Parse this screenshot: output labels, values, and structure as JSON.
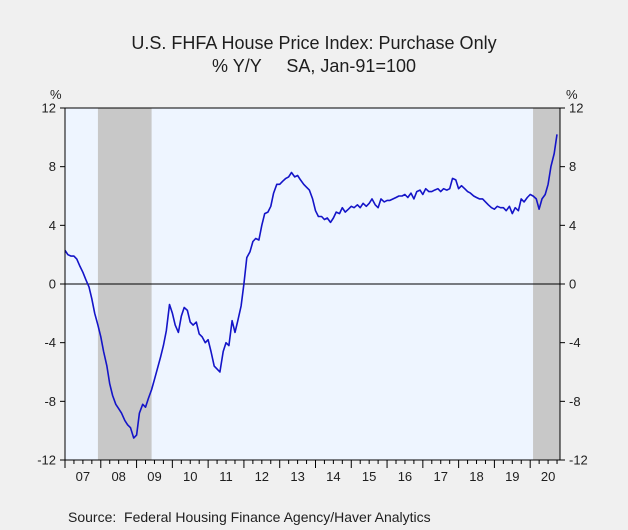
{
  "chart_data": {
    "type": "line",
    "title": "U.S. FHFA House Price Index: Purchase Only",
    "subtitle": "% Y/Y     SA, Jan-91=100",
    "ylabel_left": "%",
    "ylabel_right": "%",
    "source": "Source:  Federal Housing Finance Agency/Haver Analytics",
    "ylim": [
      -12,
      12
    ],
    "yticks": [
      "12",
      "8",
      "4",
      "0",
      "-4",
      "-8",
      "-12"
    ],
    "yticks_right": [
      "12",
      "8",
      "4",
      "0",
      "-4",
      "-8",
      "-12"
    ],
    "xlim": [
      2007.0,
      2020.833
    ],
    "xticks": [
      "07",
      "08",
      "09",
      "10",
      "11",
      "12",
      "13",
      "14",
      "15",
      "16",
      "17",
      "18",
      "19",
      "20"
    ],
    "grid": false,
    "legend": "none",
    "colors": {
      "line": "#1414c8",
      "plot_bg": "#eef5ff",
      "recession": "#c8c8c8",
      "page_bg": "#f0f0f0",
      "axis": "#000000"
    },
    "recessions": [
      {
        "start": 2007.92,
        "end": 2009.42
      },
      {
        "start": 2020.08,
        "end": 2020.833
      }
    ],
    "series": [
      {
        "x": [
          2007.0,
          2007.08,
          2007.17,
          2007.25,
          2007.33,
          2007.42,
          2007.5,
          2007.58,
          2007.67,
          2007.75,
          2007.83,
          2007.92,
          2008.0,
          2008.08,
          2008.17,
          2008.25,
          2008.33,
          2008.42,
          2008.5,
          2008.58,
          2008.67,
          2008.75,
          2008.83,
          2008.92,
          2009.0,
          2009.08,
          2009.17,
          2009.25,
          2009.33,
          2009.42,
          2009.5,
          2009.58,
          2009.67,
          2009.75,
          2009.83,
          2009.92,
          2010.0,
          2010.08,
          2010.17,
          2010.25,
          2010.33,
          2010.42,
          2010.5,
          2010.58,
          2010.67,
          2010.75,
          2010.83,
          2010.92,
          2011.0,
          2011.08,
          2011.17,
          2011.25,
          2011.33,
          2011.42,
          2011.5,
          2011.58,
          2011.67,
          2011.75,
          2011.83,
          2011.92,
          2012.0,
          2012.08,
          2012.17,
          2012.25,
          2012.33,
          2012.42,
          2012.5,
          2012.58,
          2012.67,
          2012.75,
          2012.83,
          2012.92,
          2013.0,
          2013.08,
          2013.17,
          2013.25,
          2013.33,
          2013.42,
          2013.5,
          2013.58,
          2013.67,
          2013.75,
          2013.83,
          2013.92,
          2014.0,
          2014.08,
          2014.17,
          2014.25,
          2014.33,
          2014.42,
          2014.5,
          2014.58,
          2014.67,
          2014.75,
          2014.83,
          2014.92,
          2015.0,
          2015.08,
          2015.17,
          2015.25,
          2015.33,
          2015.42,
          2015.5,
          2015.58,
          2015.67,
          2015.75,
          2015.83,
          2015.92,
          2016.0,
          2016.08,
          2016.17,
          2016.25,
          2016.33,
          2016.42,
          2016.5,
          2016.58,
          2016.67,
          2016.75,
          2016.83,
          2016.92,
          2017.0,
          2017.08,
          2017.17,
          2017.25,
          2017.33,
          2017.42,
          2017.5,
          2017.58,
          2017.67,
          2017.75,
          2017.83,
          2017.92,
          2018.0,
          2018.08,
          2018.17,
          2018.25,
          2018.33,
          2018.42,
          2018.5,
          2018.58,
          2018.67,
          2018.75,
          2018.83,
          2018.92,
          2019.0,
          2019.08,
          2019.17,
          2019.25,
          2019.33,
          2019.42,
          2019.5,
          2019.58,
          2019.67,
          2019.75,
          2019.83,
          2019.92,
          2020.0,
          2020.08,
          2020.17,
          2020.25,
          2020.33,
          2020.42,
          2020.5,
          2020.58,
          2020.67,
          2020.75
        ],
        "values": [
          2.3,
          2.0,
          1.9,
          1.9,
          1.7,
          1.2,
          0.8,
          0.3,
          -0.2,
          -1.0,
          -2.0,
          -2.8,
          -3.6,
          -4.6,
          -5.6,
          -6.8,
          -7.6,
          -8.2,
          -8.5,
          -8.8,
          -9.3,
          -9.6,
          -9.8,
          -10.5,
          -10.3,
          -8.8,
          -8.2,
          -8.4,
          -7.8,
          -7.2,
          -6.5,
          -5.8,
          -5.0,
          -4.2,
          -3.2,
          -1.4,
          -2.0,
          -2.8,
          -3.3,
          -2.2,
          -1.6,
          -1.8,
          -2.6,
          -2.8,
          -2.6,
          -3.4,
          -3.6,
          -4.0,
          -3.8,
          -4.6,
          -5.6,
          -5.8,
          -6.0,
          -4.6,
          -4.0,
          -4.2,
          -2.5,
          -3.3,
          -2.5,
          -1.5,
          0.0,
          1.8,
          2.2,
          2.9,
          3.1,
          3.0,
          4.0,
          4.8,
          4.9,
          5.3,
          6.2,
          6.8,
          6.8,
          7.0,
          7.2,
          7.3,
          7.6,
          7.3,
          7.4,
          7.1,
          6.8,
          6.6,
          6.4,
          5.8,
          5.0,
          4.6,
          4.6,
          4.4,
          4.5,
          4.2,
          4.5,
          4.9,
          4.8,
          5.2,
          4.9,
          5.1,
          5.3,
          5.2,
          5.4,
          5.2,
          5.5,
          5.3,
          5.5,
          5.8,
          5.4,
          5.2,
          5.8,
          5.6,
          5.7,
          5.7,
          5.8,
          5.9,
          6.0,
          6.0,
          6.1,
          5.9,
          6.2,
          5.8,
          6.3,
          6.4,
          6.1,
          6.5,
          6.3,
          6.3,
          6.4,
          6.5,
          6.3,
          6.5,
          6.4,
          6.5,
          7.2,
          7.1,
          6.5,
          6.7,
          6.5,
          6.3,
          6.2,
          6.0,
          5.9,
          5.8,
          5.8,
          5.6,
          5.4,
          5.2,
          5.1,
          5.3,
          5.2,
          5.2,
          5.0,
          5.3,
          4.8,
          5.2,
          5.0,
          5.8,
          5.6,
          5.9,
          6.1,
          6.0,
          5.8,
          5.1,
          5.8,
          6.1,
          6.8,
          8.0,
          8.9,
          10.2
        ]
      }
    ]
  }
}
